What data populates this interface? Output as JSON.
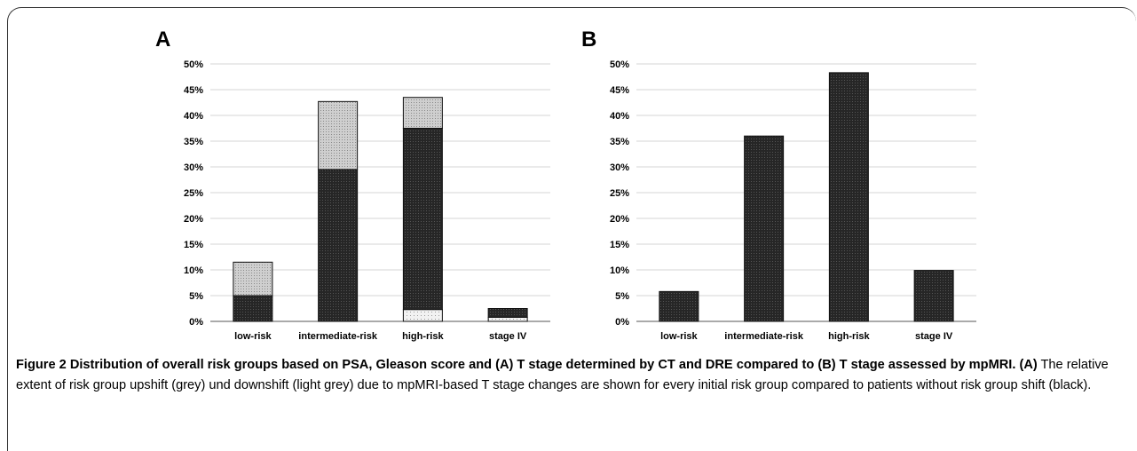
{
  "figure": {
    "caption": {
      "title": "Figure 2 Distribution of overall risk groups based on PSA, Gleason score and (A) T stage determined by CT and DRE compared to (B) T stage assessed by mpMRI.",
      "label": "(A)",
      "text": "The relative extent of risk group upshift (grey) und downshift (light grey) due to mpMRI-based T stage changes are shown for every initial risk group compared to patients without risk group shift (black)."
    }
  },
  "colors": {
    "black": "#262626",
    "grey": "#cfcfcf",
    "light_grey": "#f2f2f2"
  },
  "chart_data": [
    {
      "type": "bar",
      "stacked": true,
      "panel_label": "A",
      "categories": [
        "low-risk",
        "intermediate-risk",
        "high-risk",
        "stage IV"
      ],
      "ylim": [
        0,
        50
      ],
      "yticks": [
        "0%",
        "5%",
        "10%",
        "15%",
        "20%",
        "25%",
        "30%",
        "35%",
        "40%",
        "45%",
        "50%"
      ],
      "grid": true,
      "series": [
        {
          "key": "downshift",
          "color_key": "light_grey",
          "values": [
            0,
            0,
            2.3,
            0.8
          ]
        },
        {
          "key": "no_shift",
          "color_key": "black",
          "values": [
            5.0,
            29.5,
            35.2,
            1.7
          ]
        },
        {
          "key": "upshift",
          "color_key": "grey",
          "values": [
            6.5,
            13.2,
            6.0,
            0
          ]
        }
      ]
    },
    {
      "type": "bar",
      "stacked": false,
      "panel_label": "B",
      "categories": [
        "low-risk",
        "intermediate-risk",
        "high-risk",
        "stage IV"
      ],
      "ylim": [
        0,
        50
      ],
      "yticks": [
        "0%",
        "5%",
        "10%",
        "15%",
        "20%",
        "25%",
        "30%",
        "35%",
        "40%",
        "45%",
        "50%"
      ],
      "grid": true,
      "series": [
        {
          "key": "total",
          "color_key": "black",
          "values": [
            5.8,
            36.0,
            48.3,
            9.9
          ]
        }
      ]
    }
  ]
}
